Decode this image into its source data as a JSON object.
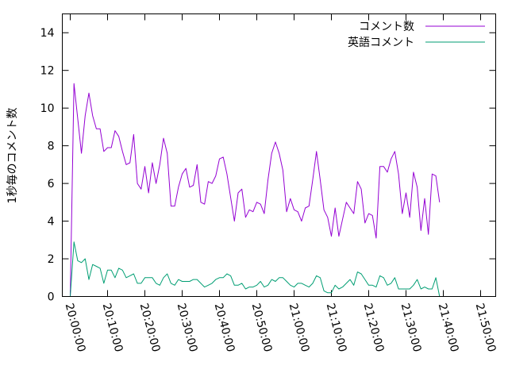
{
  "chart_data": {
    "type": "line",
    "title": "",
    "xlabel": "",
    "ylabel": "1秒毎のコメント数",
    "ylim": [
      0,
      15
    ],
    "y_ticks": [
      0,
      2,
      4,
      6,
      8,
      10,
      12,
      14
    ],
    "y_tick_labels": [
      "0",
      "2",
      "4",
      "6",
      "8",
      "10",
      "12",
      "14"
    ],
    "x_tick_labels": [
      "20:00:00",
      "20:10:00",
      "20:20:00",
      "20:30:00",
      "20:40:00",
      "20:50:00",
      "21:00:00",
      "21:10:00",
      "21:20:00",
      "21:30:00",
      "21:40:00",
      "21:50:00"
    ],
    "x_unit": "minutes after 20:00:00",
    "xlim": [
      0,
      110
    ],
    "grid": false,
    "legend_position": "top-right",
    "series": [
      {
        "name": "コメント数",
        "color": "#9400d3",
        "points": [
          [
            0,
            0
          ],
          [
            1,
            11.3
          ],
          [
            3,
            7.6
          ],
          [
            4,
            9.6
          ],
          [
            5,
            10.8
          ],
          [
            6,
            9.6
          ],
          [
            7,
            8.9
          ],
          [
            8,
            8.9
          ],
          [
            9,
            7.7
          ],
          [
            10,
            7.9
          ],
          [
            11,
            7.9
          ],
          [
            12,
            8.8
          ],
          [
            13,
            8.5
          ],
          [
            14,
            7.7
          ],
          [
            15,
            7
          ],
          [
            16,
            7.1
          ],
          [
            17,
            8.6
          ],
          [
            18,
            6
          ],
          [
            19,
            5.7
          ],
          [
            20,
            6.9
          ],
          [
            21,
            5.5
          ],
          [
            22,
            7.1
          ],
          [
            23,
            6
          ],
          [
            24,
            7
          ],
          [
            25,
            8.4
          ],
          [
            26,
            7.6
          ],
          [
            27,
            4.8
          ],
          [
            28,
            4.8
          ],
          [
            29,
            5.8
          ],
          [
            30,
            6.5
          ],
          [
            31,
            6.8
          ],
          [
            32,
            5.8
          ],
          [
            33,
            5.9
          ],
          [
            34,
            7
          ],
          [
            35,
            5
          ],
          [
            36,
            4.9
          ],
          [
            37,
            6.1
          ],
          [
            38,
            6
          ],
          [
            39,
            6.4
          ],
          [
            40,
            7.3
          ],
          [
            41,
            7.4
          ],
          [
            42,
            6.5
          ],
          [
            44,
            4
          ],
          [
            45,
            5.5
          ],
          [
            46,
            5.7
          ],
          [
            47,
            4.2
          ],
          [
            48,
            4.6
          ],
          [
            49,
            4.5
          ],
          [
            50,
            5
          ],
          [
            51,
            4.9
          ],
          [
            52,
            4.4
          ],
          [
            53,
            6.2
          ],
          [
            54,
            7.6
          ],
          [
            55,
            8.2
          ],
          [
            56,
            7.6
          ],
          [
            57,
            6.7
          ],
          [
            58,
            4.5
          ],
          [
            59,
            5.2
          ],
          [
            60,
            4.6
          ],
          [
            61,
            4.5
          ],
          [
            62,
            4
          ],
          [
            63,
            4.7
          ],
          [
            64,
            4.8
          ],
          [
            65,
            6.2
          ],
          [
            66,
            7.7
          ],
          [
            67,
            6.2
          ],
          [
            68,
            4.6
          ],
          [
            69,
            4.2
          ],
          [
            70,
            3.2
          ],
          [
            71,
            4.7
          ],
          [
            72,
            3.2
          ],
          [
            73,
            4.1
          ],
          [
            74,
            5
          ],
          [
            75,
            4.7
          ],
          [
            76,
            4.4
          ],
          [
            77,
            6.1
          ],
          [
            78,
            5.7
          ],
          [
            79,
            3.9
          ],
          [
            80,
            4.4
          ],
          [
            81,
            4.3
          ],
          [
            82,
            3.1
          ],
          [
            83,
            6.9
          ],
          [
            84,
            6.9
          ],
          [
            85,
            6.6
          ],
          [
            86,
            7.3
          ],
          [
            87,
            7.7
          ],
          [
            88,
            6.5
          ],
          [
            89,
            4.4
          ],
          [
            90,
            5.5
          ],
          [
            91,
            4.2
          ],
          [
            92,
            6.6
          ],
          [
            93,
            5.8
          ],
          [
            94,
            3.5
          ],
          [
            95,
            5.2
          ],
          [
            96,
            3.3
          ],
          [
            97,
            6.5
          ],
          [
            98,
            6.4
          ],
          [
            99,
            5
          ]
        ]
      },
      {
        "name": "英語コメント",
        "color": "#009e73",
        "points": [
          [
            0,
            0
          ],
          [
            1,
            2.9
          ],
          [
            2,
            1.9
          ],
          [
            3,
            1.8
          ],
          [
            4,
            2
          ],
          [
            5,
            0.9
          ],
          [
            6,
            1.7
          ],
          [
            7,
            1.6
          ],
          [
            8,
            1.5
          ],
          [
            9,
            0.7
          ],
          [
            10,
            1.4
          ],
          [
            11,
            1.4
          ],
          [
            12,
            1
          ],
          [
            13,
            1.5
          ],
          [
            14,
            1.4
          ],
          [
            15,
            1
          ],
          [
            16,
            1.1
          ],
          [
            17,
            1.2
          ],
          [
            18,
            0.7
          ],
          [
            19,
            0.7
          ],
          [
            20,
            1
          ],
          [
            21,
            1
          ],
          [
            22,
            1
          ],
          [
            23,
            0.7
          ],
          [
            24,
            0.6
          ],
          [
            25,
            1
          ],
          [
            26,
            1.2
          ],
          [
            27,
            0.7
          ],
          [
            28,
            0.6
          ],
          [
            29,
            0.9
          ],
          [
            30,
            0.8
          ],
          [
            31,
            0.8
          ],
          [
            32,
            0.8
          ],
          [
            33,
            0.9
          ],
          [
            34,
            0.9
          ],
          [
            35,
            0.7
          ],
          [
            36,
            0.5
          ],
          [
            37,
            0.6
          ],
          [
            38,
            0.7
          ],
          [
            39,
            0.9
          ],
          [
            40,
            1
          ],
          [
            41,
            1
          ],
          [
            42,
            1.2
          ],
          [
            43,
            1.1
          ],
          [
            44,
            0.6
          ],
          [
            45,
            0.6
          ],
          [
            46,
            0.7
          ],
          [
            47,
            0.4
          ],
          [
            48,
            0.5
          ],
          [
            49,
            0.5
          ],
          [
            50,
            0.6
          ],
          [
            51,
            0.8
          ],
          [
            52,
            0.5
          ],
          [
            53,
            0.6
          ],
          [
            54,
            0.9
          ],
          [
            55,
            0.8
          ],
          [
            56,
            1
          ],
          [
            57,
            1
          ],
          [
            58,
            0.8
          ],
          [
            59,
            0.6
          ],
          [
            60,
            0.5
          ],
          [
            61,
            0.7
          ],
          [
            62,
            0.7
          ],
          [
            63,
            0.6
          ],
          [
            64,
            0.5
          ],
          [
            65,
            0.7
          ],
          [
            66,
            1.1
          ],
          [
            67,
            1
          ],
          [
            68,
            0.3
          ],
          [
            69,
            0.2
          ],
          [
            70,
            0.2
          ],
          [
            71,
            0.6
          ],
          [
            72,
            0.4
          ],
          [
            73,
            0.5
          ],
          [
            74,
            0.7
          ],
          [
            75,
            0.9
          ],
          [
            76,
            0.6
          ],
          [
            77,
            1.3
          ],
          [
            78,
            1.2
          ],
          [
            79,
            0.9
          ],
          [
            80,
            0.6
          ],
          [
            81,
            0.6
          ],
          [
            82,
            0.5
          ],
          [
            83,
            1.1
          ],
          [
            84,
            1
          ],
          [
            85,
            0.6
          ],
          [
            86,
            0.7
          ],
          [
            87,
            1
          ],
          [
            88,
            0.4
          ],
          [
            89,
            0.4
          ],
          [
            90,
            0.4
          ],
          [
            91,
            0.4
          ],
          [
            92,
            0.6
          ],
          [
            93,
            0.9
          ],
          [
            94,
            0.4
          ],
          [
            95,
            0.5
          ],
          [
            96,
            0.4
          ],
          [
            97,
            0.4
          ],
          [
            98,
            1
          ],
          [
            99,
            0
          ]
        ]
      }
    ]
  }
}
